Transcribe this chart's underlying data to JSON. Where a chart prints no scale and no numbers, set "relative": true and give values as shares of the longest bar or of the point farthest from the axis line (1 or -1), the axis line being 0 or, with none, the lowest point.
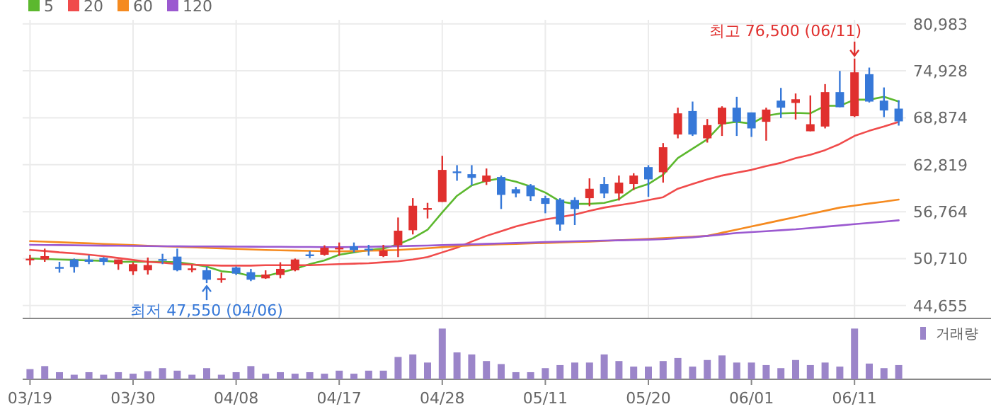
{
  "chart_data": [
    {
      "type": "candlestick",
      "categories": [
        "03/19",
        null,
        null,
        null,
        null,
        null,
        null,
        "03/30",
        null,
        null,
        null,
        null,
        null,
        null,
        "04/08",
        null,
        null,
        null,
        null,
        null,
        null,
        "04/17",
        null,
        null,
        null,
        null,
        null,
        null,
        "04/28",
        null,
        null,
        null,
        null,
        null,
        null,
        "05/11",
        null,
        null,
        null,
        null,
        null,
        null,
        "05/20",
        null,
        null,
        null,
        null,
        null,
        null,
        "06/01",
        null,
        null,
        null,
        null,
        null,
        null,
        "06/11",
        null,
        null,
        null
      ],
      "ohlc": [
        [
          50650,
          51210,
          49870,
          50700
        ],
        [
          50600,
          52000,
          50300,
          51030
        ],
        [
          49630,
          50300,
          48900,
          49510
        ],
        [
          50600,
          50720,
          48900,
          49630
        ],
        [
          50600,
          51150,
          50000,
          50300
        ],
        [
          50790,
          50910,
          49870,
          50300
        ],
        [
          50000,
          50600,
          49270,
          50600
        ],
        [
          49080,
          50240,
          48600,
          50000
        ],
        [
          49210,
          50850,
          48660,
          49880
        ],
        [
          50650,
          51330,
          50000,
          50550
        ],
        [
          50970,
          52000,
          49080,
          49210
        ],
        [
          49400,
          49880,
          48960,
          49450
        ],
        [
          49210,
          49690,
          47550,
          47990
        ],
        [
          48100,
          48900,
          47600,
          48170
        ],
        [
          49570,
          49690,
          48600,
          48780
        ],
        [
          48960,
          49390,
          47810,
          47990
        ],
        [
          48170,
          49200,
          48100,
          48660
        ],
        [
          48600,
          50240,
          48170,
          49390
        ],
        [
          49200,
          50720,
          49080,
          50600
        ],
        [
          51250,
          51700,
          50790,
          51150
        ],
        [
          51210,
          52430,
          51090,
          52120
        ],
        [
          52060,
          52790,
          51090,
          52120
        ],
        [
          52300,
          52790,
          51510,
          51820
        ],
        [
          51990,
          52490,
          51090,
          51940
        ],
        [
          51030,
          52490,
          50910,
          51760
        ],
        [
          52430,
          56010,
          50910,
          54310
        ],
        [
          54370,
          58500,
          53830,
          57530
        ],
        [
          57180,
          57900,
          55890,
          57230
        ],
        [
          58020,
          63970,
          58020,
          62150
        ],
        [
          61950,
          62760,
          60750,
          61900
        ],
        [
          61600,
          62760,
          60150,
          61120
        ],
        [
          60630,
          62330,
          60210,
          61420
        ],
        [
          61240,
          61420,
          57110,
          58930
        ],
        [
          59660,
          59960,
          58620,
          59110
        ],
        [
          60150,
          60330,
          58140,
          58750
        ],
        [
          58500,
          58810,
          56560,
          57770
        ],
        [
          58320,
          58500,
          54310,
          55100
        ],
        [
          58260,
          58620,
          55040,
          57110
        ],
        [
          58500,
          61060,
          57470,
          59720
        ],
        [
          60330,
          61240,
          58500,
          59110
        ],
        [
          59110,
          61420,
          58200,
          60510
        ],
        [
          60330,
          61720,
          59540,
          61420
        ],
        [
          62510,
          62760,
          58680,
          60930
        ],
        [
          61850,
          65610,
          60510,
          65070
        ],
        [
          66710,
          70170,
          66220,
          69440
        ],
        [
          69740,
          70960,
          66530,
          66710
        ],
        [
          66220,
          68710,
          65670,
          67920
        ],
        [
          68040,
          70350,
          66530,
          70170
        ],
        [
          70170,
          71570,
          66530,
          68350
        ],
        [
          69560,
          69560,
          66400,
          67500
        ],
        [
          68350,
          70170,
          65920,
          69930
        ],
        [
          71080,
          72720,
          68830,
          70170
        ],
        [
          70780,
          72000,
          68650,
          71260
        ],
        [
          67130,
          71750,
          67130,
          68040
        ],
        [
          67740,
          73210,
          67500,
          72180
        ],
        [
          72180,
          74910,
          70230,
          70230
        ],
        [
          69080,
          76500,
          68960,
          74730
        ],
        [
          74490,
          75340,
          70840,
          70960
        ],
        [
          71080,
          72780,
          68960,
          69810
        ],
        [
          70050,
          71140,
          67860,
          68410
        ]
      ],
      "colors": [
        "#e0302e",
        "#e0302e",
        "#3678d8",
        "#3678d8",
        "#3678d8",
        "#3678d8",
        "#e0302e",
        "#e0302e",
        "#e0302e",
        "#3678d8",
        "#3678d8",
        "#e0302e",
        "#3678d8",
        "#e0302e",
        "#3678d8",
        "#3678d8",
        "#e0302e",
        "#e0302e",
        "#e0302e",
        "#3678d8",
        "#e0302e",
        "#e0302e",
        "#3678d8",
        "#3678d8",
        "#e0302e",
        "#e0302e",
        "#e0302e",
        "#e0302e",
        "#e0302e",
        "#3678d8",
        "#3678d8",
        "#e0302e",
        "#3678d8",
        "#3678d8",
        "#3678d8",
        "#3678d8",
        "#3678d8",
        "#3678d8",
        "#e0302e",
        "#3678d8",
        "#e0302e",
        "#e0302e",
        "#3678d8",
        "#e0302e",
        "#e0302e",
        "#3678d8",
        "#e0302e",
        "#e0302e",
        "#3678d8",
        "#3678d8",
        "#e0302e",
        "#3678d8",
        "#e0302e",
        "#e0302e",
        "#e0302e",
        "#3678d8",
        "#e0302e",
        "#3678d8",
        "#3678d8",
        "#3678d8"
      ],
      "series": [
        {
          "name": "5",
          "type": "line",
          "color": "#5cb82e",
          "values": [
            50730,
            50660,
            50600,
            50540,
            50480,
            50420,
            50300,
            50300,
            50300,
            50300,
            50240,
            50000,
            49690,
            49080,
            48900,
            48480,
            48480,
            48900,
            49390,
            50000,
            50480,
            51210,
            51520,
            51820,
            52000,
            52550,
            53340,
            54430,
            56680,
            58810,
            60140,
            60750,
            61060,
            60630,
            60020,
            59230,
            58080,
            57770,
            57770,
            57900,
            58380,
            59720,
            60330,
            61540,
            63670,
            64890,
            66100,
            68110,
            68350,
            68110,
            69140,
            69440,
            69500,
            69440,
            70410,
            70410,
            71200,
            71200,
            71570,
            70960
          ]
        },
        {
          "name": "20",
          "type": "line",
          "color": "#f04b4b",
          "values": [
            51820,
            51700,
            51520,
            51390,
            51210,
            51030,
            50790,
            50540,
            50300,
            50180,
            50000,
            49940,
            49870,
            49810,
            49810,
            49810,
            49870,
            49870,
            49870,
            49870,
            49940,
            50000,
            50060,
            50120,
            50240,
            50360,
            50600,
            50910,
            51520,
            52120,
            52910,
            53640,
            54250,
            54860,
            55340,
            55770,
            56070,
            56380,
            56860,
            57290,
            57590,
            57900,
            58260,
            58630,
            59720,
            60330,
            60930,
            61420,
            61790,
            62150,
            62640,
            63060,
            63670,
            64090,
            64700,
            65490,
            66530,
            67190,
            67740,
            68350
          ]
        },
        {
          "name": "60",
          "type": "line",
          "color": "#f58a1f",
          "values": [
            52970,
            52900,
            52820,
            52750,
            52680,
            52600,
            52530,
            52450,
            52380,
            52310,
            52240,
            52170,
            52100,
            52030,
            51960,
            51890,
            51820,
            51780,
            51750,
            51710,
            51670,
            51640,
            51680,
            51730,
            51770,
            51820,
            51940,
            52060,
            52180,
            52300,
            52430,
            52490,
            52550,
            52610,
            52670,
            52730,
            52790,
            52850,
            52910,
            52990,
            53080,
            53170,
            53250,
            53340,
            53440,
            53540,
            53640,
            54050,
            54450,
            54860,
            55260,
            55670,
            56070,
            56480,
            56880,
            57290,
            57550,
            57810,
            58060,
            58320
          ]
        },
        {
          "name": "120",
          "type": "line",
          "color": "#9b59d0",
          "values": [
            52490,
            52470,
            52450,
            52430,
            52410,
            52390,
            52370,
            52350,
            52330,
            52310,
            52300,
            52290,
            52280,
            52270,
            52260,
            52250,
            52240,
            52230,
            52220,
            52210,
            52190,
            52180,
            52210,
            52240,
            52270,
            52310,
            52360,
            52400,
            52450,
            52500,
            52550,
            52610,
            52670,
            52730,
            52790,
            52850,
            52900,
            52950,
            52990,
            53030,
            53070,
            53110,
            53160,
            53220,
            53340,
            53460,
            53640,
            53820,
            54010,
            54130,
            54250,
            54370,
            54490,
            54660,
            54830,
            54990,
            55160,
            55320,
            55480,
            55650
          ]
        }
      ],
      "ylim": [
        43000,
        81500
      ],
      "yticks": [
        {
          "value": 44655,
          "label": "44,655"
        },
        {
          "value": 50710,
          "label": "50,710"
        },
        {
          "value": 56764,
          "label": "56,764"
        },
        {
          "value": 62819,
          "label": "62,819"
        },
        {
          "value": 68874,
          "label": "68,874"
        },
        {
          "value": 74928,
          "label": "74,928"
        },
        {
          "value": 80983,
          "label": "80,983"
        }
      ],
      "grid": true,
      "legend": "top left",
      "tick_labels": "y",
      "line_style": "solid",
      "annotations": [
        {
          "text": "최고 76,500 (06/11)",
          "x": "06/11",
          "y": 76500
        },
        {
          "text": "최저 47,550 (04/06)",
          "y": 47550
        }
      ]
    },
    {
      "type": "bar",
      "categories": [
        "03/19",
        null,
        null,
        null,
        null,
        null,
        null,
        "03/30",
        null,
        null,
        null,
        null,
        null,
        null,
        "04/08",
        null,
        null,
        null,
        null,
        null,
        null,
        "04/17",
        null,
        null,
        null,
        null,
        null,
        null,
        "04/28",
        null,
        null,
        null,
        null,
        null,
        null,
        "05/11",
        null,
        null,
        null,
        null,
        null,
        null,
        "05/20",
        null,
        null,
        null,
        null,
        null,
        null,
        "06/01",
        null,
        null,
        null,
        null,
        null,
        null,
        "06/11",
        null,
        null,
        null
      ],
      "series": [
        {
          "name": "거래량",
          "color": "#9b85c9",
          "values": [
            0.2,
            0.26,
            0.14,
            0.09,
            0.14,
            0.09,
            0.14,
            0.11,
            0.16,
            0.22,
            0.17,
            0.09,
            0.22,
            0.09,
            0.14,
            0.26,
            0.11,
            0.14,
            0.11,
            0.14,
            0.11,
            0.17,
            0.11,
            0.17,
            0.17,
            0.44,
            0.49,
            0.33,
            1,
            0.53,
            0.49,
            0.36,
            0.3,
            0.14,
            0.14,
            0.22,
            0.28,
            0.33,
            0.33,
            0.49,
            0.36,
            0.25,
            0.25,
            0.36,
            0.42,
            0.25,
            0.38,
            0.47,
            0.33,
            0.33,
            0.28,
            0.22,
            0.38,
            0.28,
            0.33,
            0.25,
            1,
            0.31,
            0.22,
            0.28
          ]
        }
      ],
      "relative": true,
      "legend": "top right",
      "tick_labels": "x"
    }
  ]
}
